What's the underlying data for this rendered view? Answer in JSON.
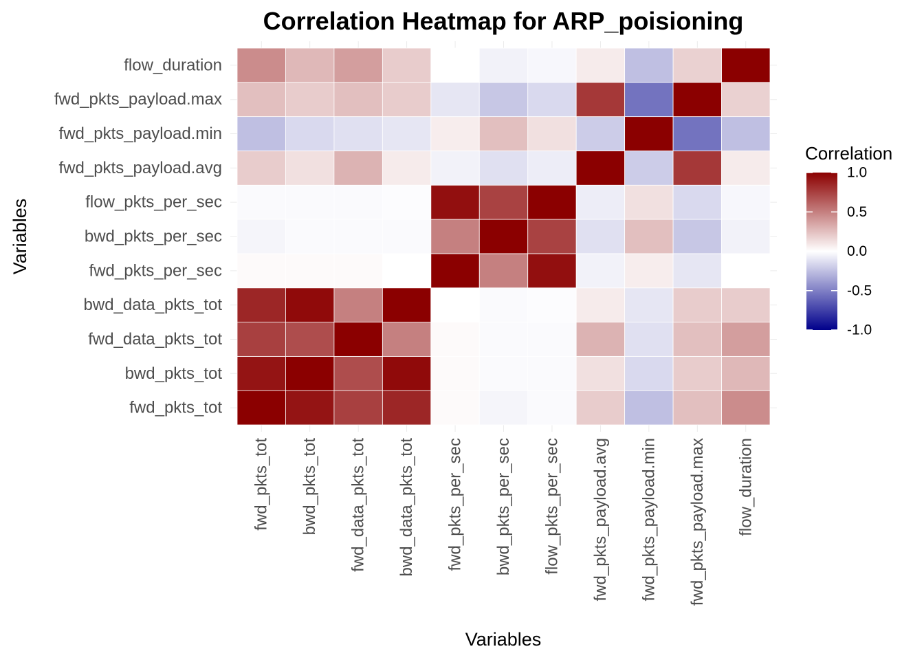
{
  "chart_data": {
    "type": "heatmap",
    "title": "Correlation Heatmap for ARP_poisioning",
    "xlabel": "Variables",
    "ylabel": "Variables",
    "variables": [
      "fwd_pkts_tot",
      "bwd_pkts_tot",
      "fwd_data_pkts_tot",
      "bwd_data_pkts_tot",
      "fwd_pkts_per_sec",
      "bwd_pkts_per_sec",
      "flow_pkts_per_sec",
      "fwd_pkts_payload.avg",
      "fwd_pkts_payload.min",
      "fwd_pkts_payload.max",
      "flow_duration"
    ],
    "matrix": [
      [
        1.0,
        0.92,
        0.75,
        0.85,
        0.02,
        -0.04,
        -0.02,
        0.2,
        -0.25,
        0.25,
        0.45
      ],
      [
        0.92,
        1.0,
        0.7,
        0.96,
        0.02,
        -0.02,
        -0.02,
        0.12,
        -0.15,
        0.2,
        0.28
      ],
      [
        0.75,
        0.7,
        1.0,
        0.5,
        0.02,
        -0.02,
        -0.02,
        0.3,
        -0.12,
        0.25,
        0.38
      ],
      [
        0.85,
        0.96,
        0.5,
        1.0,
        0.0,
        -0.02,
        -0.01,
        0.08,
        -0.1,
        0.2,
        0.2
      ],
      [
        0.02,
        0.02,
        0.02,
        0.0,
        1.0,
        0.5,
        0.94,
        -0.05,
        0.07,
        -0.1,
        0.0
      ],
      [
        -0.04,
        -0.02,
        -0.02,
        -0.02,
        0.5,
        1.0,
        0.74,
        -0.12,
        0.25,
        -0.22,
        -0.05
      ],
      [
        -0.02,
        -0.02,
        -0.02,
        -0.01,
        0.94,
        0.74,
        1.0,
        -0.07,
        0.12,
        -0.15,
        -0.03
      ],
      [
        0.2,
        0.12,
        0.3,
        0.08,
        -0.05,
        -0.12,
        -0.07,
        1.0,
        -0.2,
        0.78,
        0.08
      ],
      [
        -0.25,
        -0.15,
        -0.12,
        -0.1,
        0.07,
        0.25,
        0.12,
        -0.2,
        1.0,
        -0.55,
        -0.25
      ],
      [
        0.25,
        0.2,
        0.25,
        0.2,
        -0.1,
        -0.22,
        -0.15,
        0.78,
        -0.55,
        1.0,
        0.18
      ],
      [
        0.45,
        0.28,
        0.38,
        0.2,
        0.0,
        -0.05,
        -0.03,
        0.08,
        -0.25,
        0.18,
        1.0
      ]
    ],
    "legend": {
      "title": "Correlation",
      "ticks": [
        "1.0",
        "0.5",
        "0.0",
        "-0.5",
        "-1.0"
      ],
      "range": [
        -1,
        1
      ],
      "low_color": "#00008B",
      "mid_color": "#FFFFFF",
      "high_color": "#8B0000",
      "placement": "right"
    }
  }
}
